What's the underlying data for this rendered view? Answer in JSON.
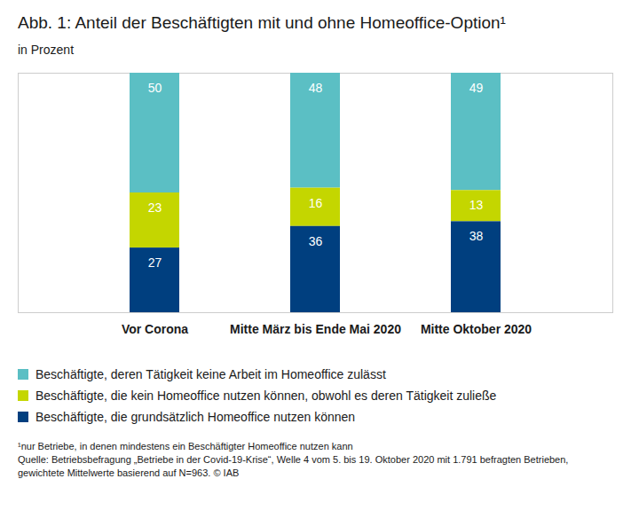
{
  "chart_data": {
    "type": "bar",
    "title": "Abb. 1: Anteil der Beschäftigten mit und ohne Homeoffice-Option¹",
    "subtitle": "in Prozent",
    "categories": [
      "Vor Corona",
      "Mitte März bis Ende Mai 2020",
      "Mitte Oktober 2020"
    ],
    "series": [
      {
        "name": "Beschäftigte, deren Tätigkeit keine Arbeit im Homeoffice zulässt",
        "color": "#5bbfc4",
        "values": [
          50,
          48,
          49
        ]
      },
      {
        "name": "Beschäftigte, die kein Homeoffice nutzen können, obwohl es deren Tätigkeit zuließe",
        "color": "#c4d600",
        "values": [
          23,
          16,
          13
        ]
      },
      {
        "name": "Beschäftigte, die grundsätzlich Homeoffice nutzen können",
        "color": "#003f7f",
        "values": [
          27,
          36,
          38
        ]
      }
    ],
    "ylim": [
      0,
      100
    ],
    "yticks": [],
    "stacked": true,
    "data_labels": true,
    "tick_labels": "x",
    "grid": false,
    "legend": "bottom",
    "footnote": "¹nur Betriebe, in denen mindestens ein Beschäftigter Homeoffice nutzen kann",
    "source": "Quelle: Betriebsbefragung „Betriebe in der Covid-19-Krise“, Welle 4 vom 5. bis 19. Oktober 2020 mit 1.791 befragten Betrieben, gewichtete Mittelwerte basierend auf N=963. © IAB"
  }
}
